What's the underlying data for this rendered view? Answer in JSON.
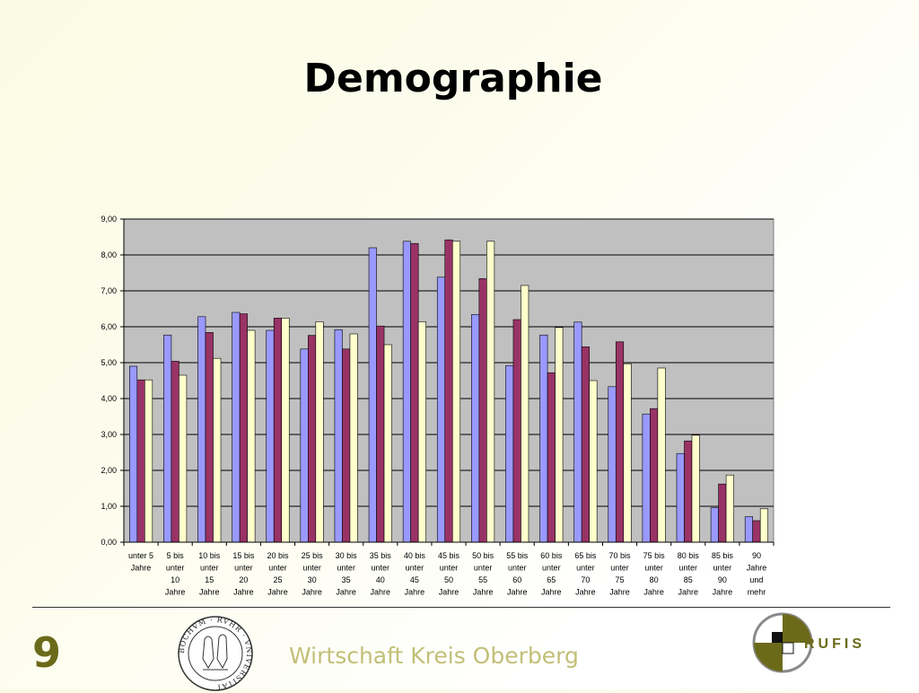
{
  "slide": {
    "title": "Demographie",
    "number": "9",
    "footer": "Wirtschaft Kreis Oberberg",
    "seal_text": "BOCHVM · RVHR · VNIVERSITAT",
    "logo_text": "RUFIS"
  },
  "colors": {
    "series1": "#9999ff",
    "series2": "#993366",
    "series3": "#ffffcc",
    "plot_bg": "#c0c0c0",
    "olive": "#6b6a1a"
  },
  "chart_data": {
    "type": "bar",
    "ylim": [
      0,
      9
    ],
    "yticks": [
      "0,00",
      "1,00",
      "2,00",
      "3,00",
      "4,00",
      "5,00",
      "6,00",
      "7,00",
      "8,00",
      "9,00"
    ],
    "grid": true,
    "categories": [
      [
        "unter 5",
        "Jahre"
      ],
      [
        "5 bis",
        "unter",
        "10",
        "Jahre"
      ],
      [
        "10 bis",
        "unter",
        "15",
        "Jahre"
      ],
      [
        "15 bis",
        "unter",
        "20",
        "Jahre"
      ],
      [
        "20 bis",
        "unter",
        "25",
        "Jahre"
      ],
      [
        "25 bis",
        "unter",
        "30",
        "Jahre"
      ],
      [
        "30 bis",
        "unter",
        "35",
        "Jahre"
      ],
      [
        "35 bis",
        "unter",
        "40",
        "Jahre"
      ],
      [
        "40 bis",
        "unter",
        "45",
        "Jahre"
      ],
      [
        "45 bis",
        "unter",
        "50",
        "Jahre"
      ],
      [
        "50 bis",
        "unter",
        "55",
        "Jahre"
      ],
      [
        "55 bis",
        "unter",
        "60",
        "Jahre"
      ],
      [
        "60 bis",
        "unter",
        "65",
        "Jahre"
      ],
      [
        "65 bis",
        "unter",
        "70",
        "Jahre"
      ],
      [
        "70 bis",
        "unter",
        "75",
        "Jahre"
      ],
      [
        "75 bis",
        "unter",
        "80",
        "Jahre"
      ],
      [
        "80 bis",
        "unter",
        "85",
        "Jahre"
      ],
      [
        "85 bis",
        "unter",
        "90",
        "Jahre"
      ],
      [
        "90",
        "Jahre",
        "und",
        "mehr"
      ]
    ],
    "series": [
      {
        "values": [
          4.9,
          5.77,
          6.28,
          6.4,
          5.9,
          5.38,
          5.92,
          8.2,
          8.38,
          7.38,
          6.34,
          4.92,
          5.77,
          6.13,
          4.33,
          3.57,
          2.47,
          0.96,
          0.71
        ]
      },
      {
        "values": [
          4.52,
          5.04,
          5.84,
          6.36,
          6.24,
          5.76,
          5.38,
          6.02,
          8.32,
          8.42,
          7.34,
          6.2,
          4.72,
          5.44,
          5.58,
          3.72,
          2.82,
          1.62,
          0.6
        ]
      },
      {
        "values": [
          4.52,
          4.65,
          5.12,
          5.9,
          6.24,
          6.14,
          5.8,
          5.5,
          6.14,
          8.38,
          8.38,
          7.15,
          5.98,
          4.5,
          4.97,
          4.85,
          2.98,
          1.87,
          0.93
        ]
      }
    ]
  }
}
